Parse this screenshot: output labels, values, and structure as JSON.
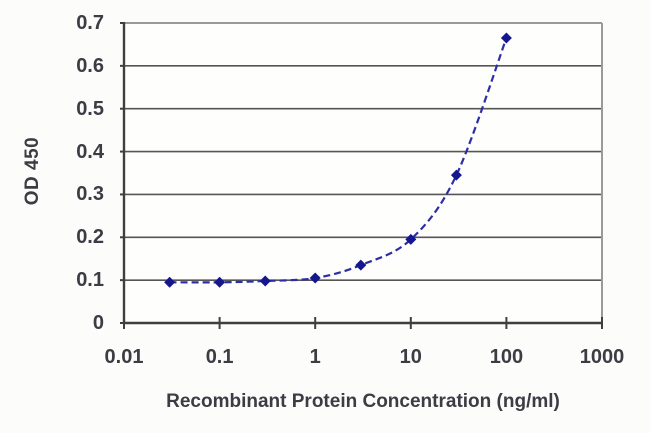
{
  "figure": {
    "kind": "ELISA standard curve plot"
  },
  "chart_data": {
    "type": "line",
    "title": "",
    "xlabel": "Recombinant Protein Concentration (ng/ml)",
    "ylabel": "OD 450",
    "x_scale": "log",
    "y_scale": "linear",
    "xlim": [
      0.01,
      1000
    ],
    "ylim": [
      0,
      0.7
    ],
    "x_ticks": [
      "0.01",
      "0.1",
      "1",
      "10",
      "100",
      "1000"
    ],
    "x_tick_values": [
      0.01,
      0.1,
      1,
      10,
      100,
      1000
    ],
    "y_ticks": [
      "0",
      "0.1",
      "0.2",
      "0.3",
      "0.4",
      "0.5",
      "0.6",
      "0.7"
    ],
    "y_tick_values": [
      0,
      0.1,
      0.2,
      0.3,
      0.4,
      0.5,
      0.6,
      0.7
    ],
    "grid": "horizontal",
    "legend": "none",
    "series": [
      {
        "name": "OD 450",
        "x": [
          0.03,
          0.1,
          0.3,
          1,
          3,
          10,
          30,
          100
        ],
        "values": [
          0.095,
          0.095,
          0.098,
          0.105,
          0.135,
          0.195,
          0.345,
          0.665
        ],
        "line_style": "dashed",
        "line_color": "#2d2da6",
        "marker": "diamond",
        "marker_color": "#16168f"
      }
    ],
    "colors": {
      "grid_line": "#565656",
      "frame_line": "#9a9a9a",
      "axis_line": "#3f3f3f",
      "tick_text": "#3c3c45",
      "plot_background": "#fefefd"
    }
  }
}
